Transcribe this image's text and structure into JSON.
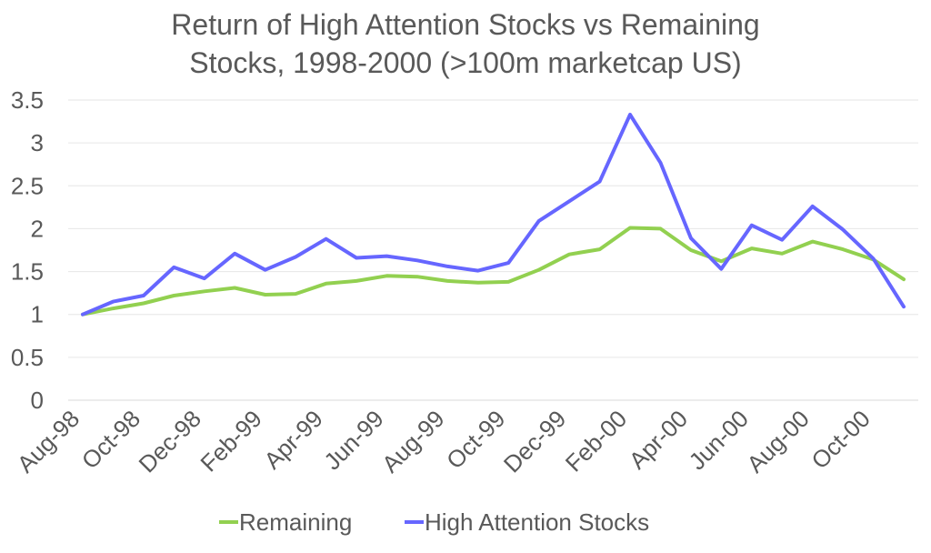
{
  "chart_data": {
    "type": "line",
    "title": "Return of High Attention Stocks vs Remaining Stocks, 1998-2000 (>100m marketcap US)",
    "title_lines": [
      "Return of High Attention Stocks vs Remaining",
      "Stocks, 1998-2000 (>100m marketcap US)"
    ],
    "xlabel": "",
    "ylabel": "",
    "ylim": [
      0,
      3.5
    ],
    "yticks": [
      "0",
      "0.5",
      "1",
      "1.5",
      "2",
      "2.5",
      "3",
      "3.5"
    ],
    "ytick_values": [
      0,
      0.5,
      1,
      1.5,
      2,
      2.5,
      3,
      3.5
    ],
    "categories": [
      "Aug-98",
      "Sep-98",
      "Oct-98",
      "Nov-98",
      "Dec-98",
      "Jan-99",
      "Feb-99",
      "Mar-99",
      "Apr-99",
      "May-99",
      "Jun-99",
      "Jul-99",
      "Aug-99",
      "Sep-99",
      "Oct-99",
      "Nov-99",
      "Dec-99",
      "Jan-00",
      "Feb-00",
      "Mar-00",
      "Apr-00",
      "May-00",
      "Jun-00",
      "Jul-00",
      "Aug-00",
      "Sep-00",
      "Oct-00",
      "Nov-00"
    ],
    "xtick_labels": [
      "Aug-98",
      "Oct-98",
      "Dec-98",
      "Feb-99",
      "Apr-99",
      "Jun-99",
      "Aug-99",
      "Oct-99",
      "Dec-99",
      "Feb-00",
      "Apr-00",
      "Jun-00",
      "Aug-00",
      "Oct-00"
    ],
    "grid": true,
    "legend_position": "bottom",
    "series": [
      {
        "name": "Remaining",
        "color": "#92d050",
        "values": [
          1.0,
          1.07,
          1.13,
          1.22,
          1.27,
          1.31,
          1.23,
          1.24,
          1.36,
          1.39,
          1.45,
          1.44,
          1.39,
          1.37,
          1.38,
          1.52,
          1.7,
          1.76,
          2.01,
          2.0,
          1.75,
          1.62,
          1.77,
          1.71,
          1.85,
          1.76,
          1.64,
          1.41
        ]
      },
      {
        "name": "High Attention Stocks",
        "color": "#6666ff",
        "values": [
          1.0,
          1.15,
          1.22,
          1.55,
          1.42,
          1.71,
          1.52,
          1.67,
          1.88,
          1.66,
          1.68,
          1.63,
          1.56,
          1.51,
          1.6,
          2.09,
          2.32,
          2.55,
          3.33,
          2.77,
          1.89,
          1.53,
          2.04,
          1.87,
          2.26,
          1.99,
          1.65,
          1.09
        ]
      }
    ]
  }
}
